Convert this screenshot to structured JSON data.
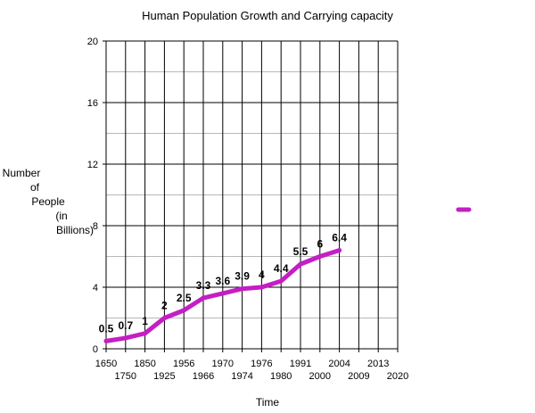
{
  "chart_data": {
    "type": "line",
    "title": "Human Population Growth and Carrying capacity",
    "xlabel": "Time",
    "ylabel_lines": [
      "Number",
      "of",
      "People",
      "(in",
      "Billions)"
    ],
    "ylim": [
      0,
      20
    ],
    "y_ticks": [
      0,
      4,
      8,
      12,
      16,
      20
    ],
    "y_minor_step": 2,
    "x_tick_labels": [
      "1650",
      "1750",
      "1850",
      "1925",
      "1956",
      "1966",
      "1970",
      "1974",
      "1976",
      "1980",
      "1991",
      "2000",
      "2004",
      "2009",
      "2013",
      "2020"
    ],
    "grid": true,
    "legend": {
      "position": "right",
      "entries": [
        ""
      ]
    },
    "series": [
      {
        "name": "",
        "color": "#c41ec4",
        "x": [
          "1650",
          "1750",
          "1850",
          "1925",
          "1956",
          "1966",
          "1970",
          "1974",
          "1976",
          "1980",
          "1991",
          "2000",
          "2004"
        ],
        "values": [
          0.5,
          0.7,
          1,
          2,
          2.5,
          3.3,
          3.6,
          3.9,
          4,
          4.4,
          5.5,
          6,
          6.4
        ],
        "labels": [
          "0.5",
          "0.7",
          "1",
          "2",
          "2.5",
          "3.3",
          "3.6",
          "3.9",
          "4",
          "4.4",
          "5.5",
          "6",
          "6.4"
        ]
      }
    ]
  }
}
